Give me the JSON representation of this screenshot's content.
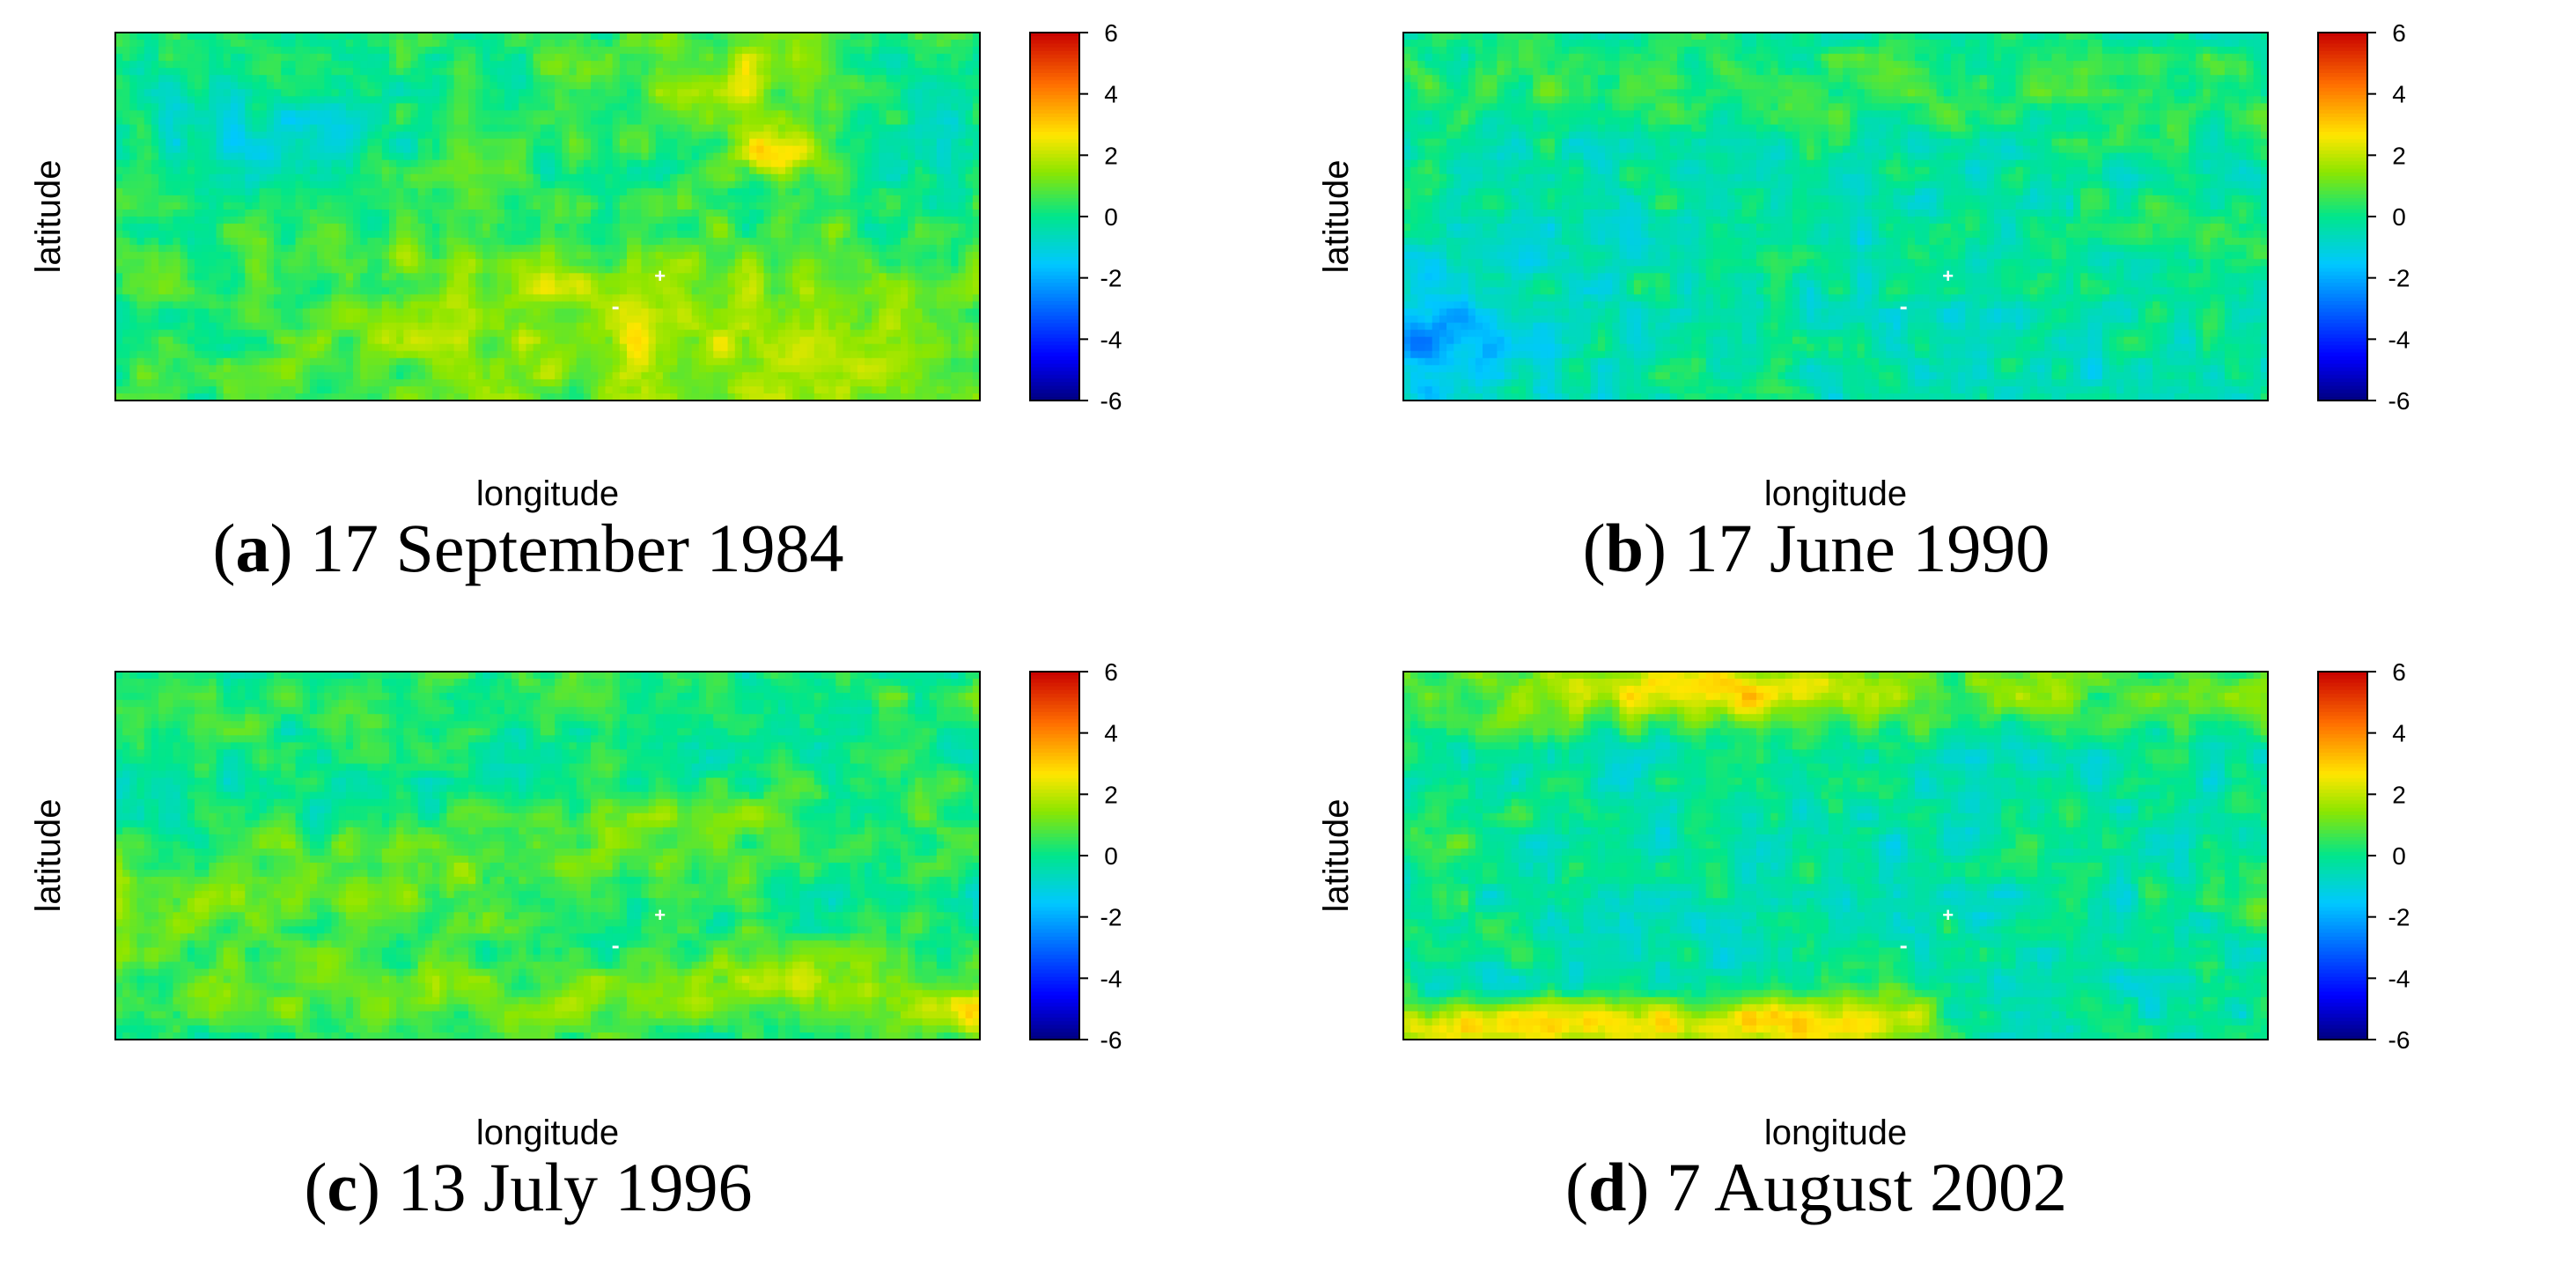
{
  "figure": {
    "panels": [
      {
        "id": "a",
        "letter": "a",
        "date": "17 September 1984"
      },
      {
        "id": "b",
        "letter": "b",
        "date": "17 June 1990"
      },
      {
        "id": "c",
        "letter": "c",
        "date": "13 July 1996"
      },
      {
        "id": "d",
        "letter": "d",
        "date": "7 August 2002"
      }
    ]
  },
  "chart_data": [
    {
      "type": "heatmap",
      "title": "(a) 17 September 1984",
      "xlabel": "longitude",
      "ylabel": "latitude",
      "colorbar": {
        "range": [
          -6,
          6
        ],
        "ticks": [
          "6",
          "4",
          "2",
          "0",
          "-2",
          "-4",
          "-6"
        ]
      },
      "field_summary": {
        "mean": 0.7,
        "low": -1.6,
        "high": 3.6
      }
    },
    {
      "type": "heatmap",
      "title": "(b) 17 June 1990",
      "xlabel": "longitude",
      "ylabel": "latitude",
      "colorbar": {
        "range": [
          -6,
          6
        ],
        "ticks": [
          "6",
          "4",
          "2",
          "0",
          "-2",
          "-4",
          "-6"
        ]
      },
      "field_summary": {
        "mean": -0.4,
        "low": -3.2,
        "high": 1.8
      }
    },
    {
      "type": "heatmap",
      "title": "(c) 13 July 1996",
      "xlabel": "longitude",
      "ylabel": "latitude",
      "colorbar": {
        "range": [
          -6,
          6
        ],
        "ticks": [
          "6",
          "4",
          "2",
          "0",
          "-2",
          "-4",
          "-6"
        ]
      },
      "field_summary": {
        "mean": 0.5,
        "low": -1.2,
        "high": 3.0
      }
    },
    {
      "type": "heatmap",
      "title": "(d) 7 August 2002",
      "xlabel": "longitude",
      "ylabel": "latitude",
      "colorbar": {
        "range": [
          -6,
          6
        ],
        "ticks": [
          "6",
          "4",
          "2",
          "0",
          "-2",
          "-4",
          "-6"
        ]
      },
      "field_summary": {
        "mean": 0.0,
        "low": -1.6,
        "high": 3.6
      }
    }
  ]
}
